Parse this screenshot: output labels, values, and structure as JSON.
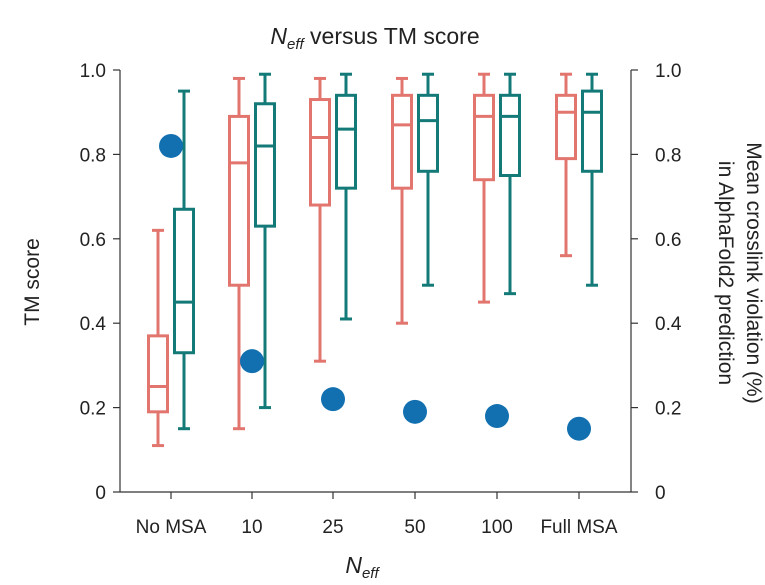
{
  "chart_data": {
    "type": "box",
    "title": {
      "main": "N",
      "sub": "eff",
      "rest": " versus TM score"
    },
    "xlabel": {
      "main": "N",
      "sub": "eff"
    },
    "ylabel": "TM score",
    "y2label_line1": "Mean crosslink violation (%)",
    "y2label_line2": "in AlphaFold2 prediction",
    "ylim": [
      0,
      1.0
    ],
    "y2lim": [
      0,
      1.0
    ],
    "yticks": [
      "0",
      "0.2",
      "0.4",
      "0.6",
      "0.8",
      "1.0"
    ],
    "y2ticks": [
      "0",
      "0.2",
      "0.4",
      "0.6",
      "0.8",
      "1.0"
    ],
    "categories": [
      "No MSA",
      "10",
      "25",
      "50",
      "100",
      "Full MSA"
    ],
    "colors": {
      "series1": "#e2766e",
      "series2": "#137a78",
      "points": "#1270b0"
    },
    "box_series": [
      {
        "boxes": [
          {
            "min": 0.11,
            "q1": 0.19,
            "median": 0.25,
            "q3": 0.37,
            "max": 0.62
          },
          {
            "min": 0.15,
            "q1": 0.49,
            "median": 0.78,
            "q3": 0.89,
            "max": 0.98
          },
          {
            "min": 0.31,
            "q1": 0.68,
            "median": 0.84,
            "q3": 0.93,
            "max": 0.98
          },
          {
            "min": 0.4,
            "q1": 0.72,
            "median": 0.87,
            "q3": 0.94,
            "max": 0.98
          },
          {
            "min": 0.45,
            "q1": 0.74,
            "median": 0.89,
            "q3": 0.94,
            "max": 0.99
          },
          {
            "min": 0.56,
            "q1": 0.79,
            "median": 0.9,
            "q3": 0.94,
            "max": 0.99
          }
        ]
      },
      {
        "boxes": [
          {
            "min": 0.15,
            "q1": 0.33,
            "median": 0.45,
            "q3": 0.67,
            "max": 0.95
          },
          {
            "min": 0.2,
            "q1": 0.63,
            "median": 0.82,
            "q3": 0.92,
            "max": 0.99
          },
          {
            "min": 0.41,
            "q1": 0.72,
            "median": 0.86,
            "q3": 0.94,
            "max": 0.99
          },
          {
            "min": 0.49,
            "q1": 0.76,
            "median": 0.88,
            "q3": 0.94,
            "max": 0.99
          },
          {
            "min": 0.47,
            "q1": 0.75,
            "median": 0.89,
            "q3": 0.94,
            "max": 0.99
          },
          {
            "min": 0.49,
            "q1": 0.76,
            "median": 0.9,
            "q3": 0.95,
            "max": 0.99
          }
        ]
      }
    ],
    "scatter_series": {
      "axis": "right",
      "values": [
        0.82,
        0.31,
        0.22,
        0.19,
        0.18,
        0.15
      ]
    },
    "grid": false,
    "legend": "none"
  }
}
